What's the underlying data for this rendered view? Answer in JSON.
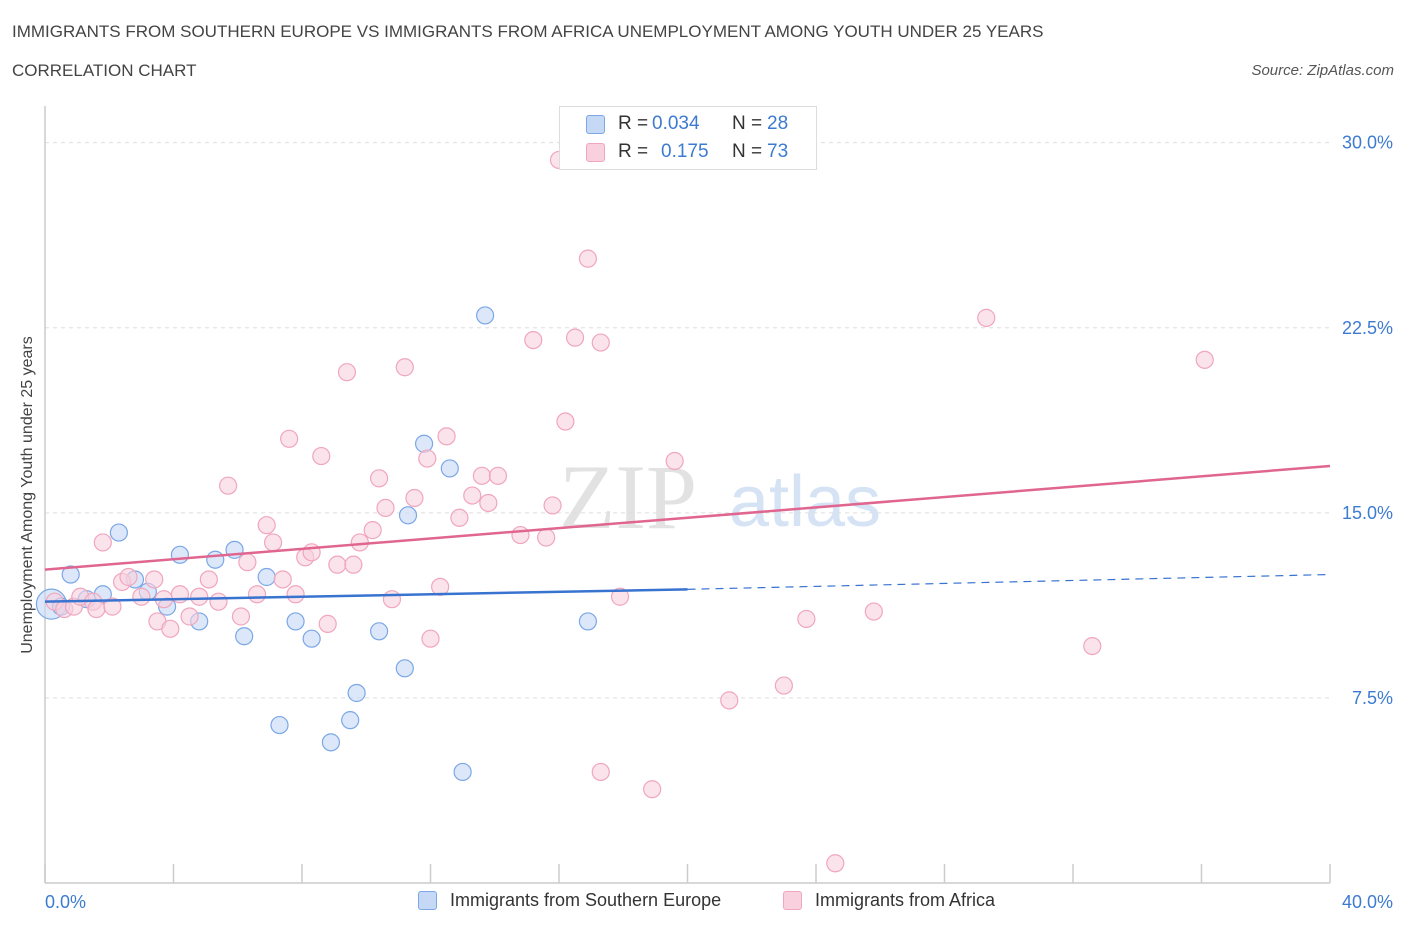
{
  "title": "IMMIGRANTS FROM SOUTHERN EUROPE VS IMMIGRANTS FROM AFRICA UNEMPLOYMENT AMONG YOUTH UNDER 25 YEARS",
  "subtitle": "CORRELATION CHART",
  "source": "Source: ZipAtlas.com",
  "watermark": {
    "zip": "ZIP",
    "atlas": "atlas"
  },
  "legend_top": [
    {
      "r_label": "R =",
      "r_value": "0.034",
      "n_label": "N =",
      "n_value": "28"
    },
    {
      "r_label": "R =",
      "r_value": "0.175",
      "n_label": "N =",
      "n_value": "73"
    }
  ],
  "colors": {
    "blue_fill": "#c5d9f7",
    "blue_stroke": "#7ba7e6",
    "blue_line": "#3873d0",
    "pink_fill": "#f9d0dd",
    "pink_stroke": "#f0a6bd",
    "pink_line": "#e06690",
    "axis_text": "#3d7bd1",
    "grid": "#dddddd"
  },
  "chart_data": {
    "type": "scatter",
    "title": "IMMIGRANTS FROM SOUTHERN EUROPE VS IMMIGRANTS FROM AFRICA UNEMPLOYMENT AMONG YOUTH UNDER 25 YEARS",
    "xlabel": "",
    "ylabel": "Unemployment Among Youth under 25 years",
    "xlim": [
      0,
      40
    ],
    "ylim": [
      0,
      31
    ],
    "x_tick_labels": [
      "0.0%",
      "40.0%"
    ],
    "y_ticks": [
      7.5,
      15.0,
      22.5,
      30.0
    ],
    "y_tick_labels": [
      "7.5%",
      "15.0%",
      "22.5%",
      "30.0%"
    ],
    "grid": true,
    "series": [
      {
        "name": "Immigrants from Southern Europe",
        "color": "blue",
        "R": 0.034,
        "N": 28,
        "trend": {
          "x0": 0,
          "y0": 11.4,
          "x1": 20,
          "y1": 11.9,
          "dash_to_x": 40,
          "dash_to_y": 12.5
        },
        "points": [
          {
            "x": 0.2,
            "y": 11.3,
            "big": true
          },
          {
            "x": 0.5,
            "y": 11.2
          },
          {
            "x": 0.8,
            "y": 12.5
          },
          {
            "x": 1.3,
            "y": 11.5
          },
          {
            "x": 1.8,
            "y": 11.7
          },
          {
            "x": 2.3,
            "y": 14.2
          },
          {
            "x": 2.8,
            "y": 12.3
          },
          {
            "x": 3.2,
            "y": 11.8
          },
          {
            "x": 3.8,
            "y": 11.2
          },
          {
            "x": 4.2,
            "y": 13.3
          },
          {
            "x": 4.8,
            "y": 10.6
          },
          {
            "x": 5.3,
            "y": 13.1
          },
          {
            "x": 5.9,
            "y": 13.5
          },
          {
            "x": 6.2,
            "y": 10.0
          },
          {
            "x": 6.9,
            "y": 12.4
          },
          {
            "x": 7.3,
            "y": 6.4
          },
          {
            "x": 7.8,
            "y": 10.6
          },
          {
            "x": 8.3,
            "y": 9.9
          },
          {
            "x": 8.9,
            "y": 5.7
          },
          {
            "x": 9.5,
            "y": 6.6
          },
          {
            "x": 9.7,
            "y": 7.7
          },
          {
            "x": 10.4,
            "y": 10.2
          },
          {
            "x": 11.2,
            "y": 8.7
          },
          {
            "x": 11.3,
            "y": 14.9
          },
          {
            "x": 11.8,
            "y": 17.8
          },
          {
            "x": 12.6,
            "y": 16.8
          },
          {
            "x": 13.0,
            "y": 4.5
          },
          {
            "x": 13.7,
            "y": 23.0
          },
          {
            "x": 16.9,
            "y": 10.6
          }
        ]
      },
      {
        "name": "Immigrants from Africa",
        "color": "pink",
        "R": 0.175,
        "N": 73,
        "trend": {
          "x0": 0,
          "y0": 12.7,
          "x1": 40,
          "y1": 16.9
        },
        "points": [
          {
            "x": 0.3,
            "y": 11.4
          },
          {
            "x": 0.6,
            "y": 11.1
          },
          {
            "x": 0.9,
            "y": 11.2
          },
          {
            "x": 1.1,
            "y": 11.6
          },
          {
            "x": 1.5,
            "y": 11.4
          },
          {
            "x": 1.6,
            "y": 11.1
          },
          {
            "x": 1.8,
            "y": 13.8
          },
          {
            "x": 2.1,
            "y": 11.2
          },
          {
            "x": 2.4,
            "y": 12.2
          },
          {
            "x": 2.6,
            "y": 12.4
          },
          {
            "x": 3.0,
            "y": 11.6
          },
          {
            "x": 3.4,
            "y": 12.3
          },
          {
            "x": 3.5,
            "y": 10.6
          },
          {
            "x": 3.7,
            "y": 11.5
          },
          {
            "x": 3.9,
            "y": 10.3
          },
          {
            "x": 4.2,
            "y": 11.7
          },
          {
            "x": 4.5,
            "y": 10.8
          },
          {
            "x": 4.8,
            "y": 11.6
          },
          {
            "x": 5.1,
            "y": 12.3
          },
          {
            "x": 5.4,
            "y": 11.4
          },
          {
            "x": 5.7,
            "y": 16.1
          },
          {
            "x": 6.1,
            "y": 10.8
          },
          {
            "x": 6.3,
            "y": 13.0
          },
          {
            "x": 6.6,
            "y": 11.7
          },
          {
            "x": 6.9,
            "y": 14.5
          },
          {
            "x": 7.1,
            "y": 13.8
          },
          {
            "x": 7.4,
            "y": 12.3
          },
          {
            "x": 7.6,
            "y": 18.0
          },
          {
            "x": 7.8,
            "y": 11.7
          },
          {
            "x": 8.1,
            "y": 13.2
          },
          {
            "x": 8.3,
            "y": 13.4
          },
          {
            "x": 8.6,
            "y": 17.3
          },
          {
            "x": 8.8,
            "y": 10.5
          },
          {
            "x": 9.1,
            "y": 12.9
          },
          {
            "x": 9.4,
            "y": 20.7
          },
          {
            "x": 9.6,
            "y": 12.9
          },
          {
            "x": 9.8,
            "y": 13.8
          },
          {
            "x": 10.2,
            "y": 14.3
          },
          {
            "x": 10.4,
            "y": 16.4
          },
          {
            "x": 10.6,
            "y": 15.2
          },
          {
            "x": 10.8,
            "y": 11.5
          },
          {
            "x": 11.2,
            "y": 20.9
          },
          {
            "x": 11.5,
            "y": 15.6
          },
          {
            "x": 11.9,
            "y": 17.2
          },
          {
            "x": 12.0,
            "y": 9.9
          },
          {
            "x": 12.3,
            "y": 12.0
          },
          {
            "x": 12.5,
            "y": 18.1
          },
          {
            "x": 12.9,
            "y": 14.8
          },
          {
            "x": 13.3,
            "y": 15.7
          },
          {
            "x": 13.6,
            "y": 16.5
          },
          {
            "x": 13.8,
            "y": 15.4
          },
          {
            "x": 14.1,
            "y": 16.5
          },
          {
            "x": 14.8,
            "y": 14.1
          },
          {
            "x": 15.2,
            "y": 22.0
          },
          {
            "x": 15.6,
            "y": 14.0
          },
          {
            "x": 15.8,
            "y": 15.3
          },
          {
            "x": 16.0,
            "y": 29.3
          },
          {
            "x": 16.2,
            "y": 18.7
          },
          {
            "x": 16.5,
            "y": 22.1
          },
          {
            "x": 16.9,
            "y": 25.3
          },
          {
            "x": 17.3,
            "y": 4.5
          },
          {
            "x": 17.3,
            "y": 21.9
          },
          {
            "x": 17.9,
            "y": 11.6
          },
          {
            "x": 18.9,
            "y": 3.8
          },
          {
            "x": 19.6,
            "y": 17.1
          },
          {
            "x": 21.3,
            "y": 7.4
          },
          {
            "x": 23.0,
            "y": 8.0
          },
          {
            "x": 23.7,
            "y": 10.7
          },
          {
            "x": 24.6,
            "y": 0.8
          },
          {
            "x": 25.8,
            "y": 11.0
          },
          {
            "x": 29.3,
            "y": 22.9
          },
          {
            "x": 32.6,
            "y": 9.6
          },
          {
            "x": 36.1,
            "y": 21.2
          }
        ]
      }
    ]
  },
  "legend_bottom": [
    {
      "label": "Immigrants from Southern Europe"
    },
    {
      "label": "Immigrants from Africa"
    }
  ]
}
